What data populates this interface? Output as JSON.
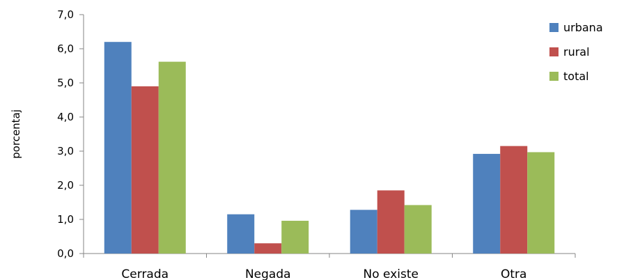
{
  "chart_data": {
    "type": "bar",
    "title": "",
    "xlabel": "",
    "ylabel": "porcentaj",
    "ylim": [
      0,
      7
    ],
    "yticks": [
      "0,0",
      "1,0",
      "2,0",
      "3,0",
      "4,0",
      "5,0",
      "6,0",
      "7,0"
    ],
    "categories": [
      "Cerrada",
      "Negada",
      "No existe",
      "Otra"
    ],
    "series": [
      {
        "name": "urbana",
        "color": "#4F81BD",
        "values": [
          6.2,
          1.15,
          1.28,
          2.92
        ]
      },
      {
        "name": "rural",
        "color": "#C0504D",
        "values": [
          4.9,
          0.3,
          1.85,
          3.15
        ]
      },
      {
        "name": "total",
        "color": "#9BBB59",
        "values": [
          5.62,
          0.96,
          1.42,
          2.97
        ]
      }
    ],
    "grid": false,
    "legend_position": "top-right"
  }
}
